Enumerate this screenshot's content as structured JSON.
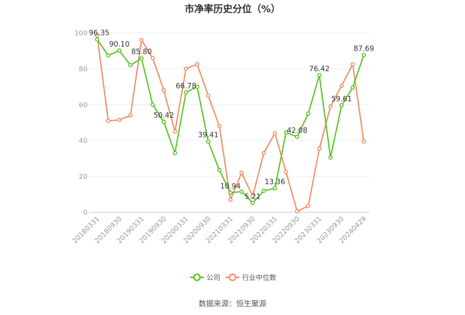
{
  "chart_data": {
    "type": "line",
    "title": "市净率历史分位（%）",
    "ylim": [
      0,
      100
    ],
    "yticks": [
      0,
      20,
      40,
      60,
      80,
      100
    ],
    "xtick_labels": [
      "20180331",
      "20180930",
      "20190331",
      "20190930",
      "20200331",
      "20200930",
      "20210331",
      "20210930",
      "20220331",
      "20220930",
      "20230331",
      "20230930",
      "20240429"
    ],
    "series": [
      {
        "name": "公司",
        "color": "#52c41a",
        "values": [
          96.35,
          87.5,
          90.1,
          82.0,
          85.8,
          60.0,
          50.42,
          33.0,
          66.78,
          70.0,
          39.41,
          23.5,
          10.94,
          11.5,
          5.21,
          12.0,
          13.36,
          44.5,
          42.08,
          55.0,
          76.42,
          30.5,
          59.61,
          69.5,
          87.69
        ]
      },
      {
        "name": "行业中位数",
        "color": "#f4895f",
        "values": [
          98.5,
          51.0,
          51.5,
          54.0,
          96.0,
          86.0,
          68.0,
          45.0,
          80.0,
          82.5,
          65.0,
          48.0,
          7.0,
          22.0,
          9.0,
          33.0,
          44.0,
          22.5,
          0.5,
          3.5,
          35.5,
          59.0,
          70.5,
          82.5,
          39.5
        ]
      }
    ],
    "data_labels": [
      {
        "series": 0,
        "index": 0,
        "text": "96.35"
      },
      {
        "series": 0,
        "index": 2,
        "text": "90.10"
      },
      {
        "series": 0,
        "index": 4,
        "text": "85.80"
      },
      {
        "series": 0,
        "index": 6,
        "text": "50.42"
      },
      {
        "series": 0,
        "index": 8,
        "text": "66.78"
      },
      {
        "series": 0,
        "index": 10,
        "text": "39.41"
      },
      {
        "series": 0,
        "index": 12,
        "text": "10.94"
      },
      {
        "series": 0,
        "index": 14,
        "text": "5.21"
      },
      {
        "series": 0,
        "index": 16,
        "text": "13.36"
      },
      {
        "series": 0,
        "index": 18,
        "text": "42.08"
      },
      {
        "series": 0,
        "index": 20,
        "text": "76.42"
      },
      {
        "series": 0,
        "index": 22,
        "text": "59.61"
      },
      {
        "series": 0,
        "index": 24,
        "text": "87.69"
      }
    ],
    "legend_placement": "bottom-center",
    "grid": true
  },
  "source": "数据来源：恒生聚源"
}
